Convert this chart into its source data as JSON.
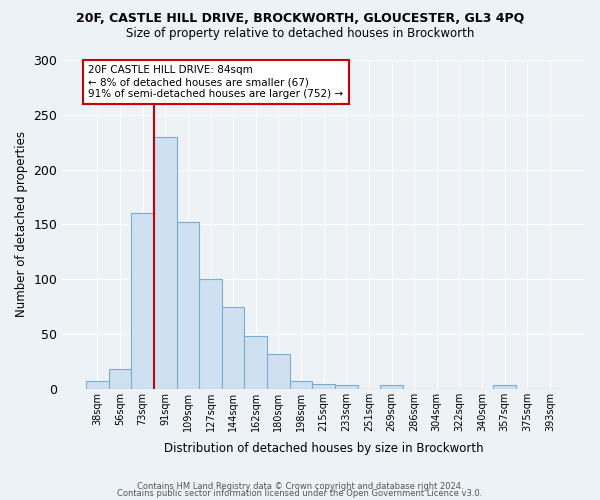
{
  "title1": "20F, CASTLE HILL DRIVE, BROCKWORTH, GLOUCESTER, GL3 4PQ",
  "title2": "Size of property relative to detached houses in Brockworth",
  "xlabel": "Distribution of detached houses by size in Brockworth",
  "ylabel": "Number of detached properties",
  "categories": [
    "38sqm",
    "56sqm",
    "73sqm",
    "91sqm",
    "109sqm",
    "127sqm",
    "144sqm",
    "162sqm",
    "180sqm",
    "198sqm",
    "215sqm",
    "233sqm",
    "251sqm",
    "269sqm",
    "286sqm",
    "304sqm",
    "322sqm",
    "340sqm",
    "357sqm",
    "375sqm",
    "393sqm"
  ],
  "values": [
    7,
    18,
    160,
    230,
    152,
    100,
    75,
    48,
    32,
    7,
    4,
    3,
    0,
    3,
    0,
    0,
    0,
    0,
    3,
    0,
    0
  ],
  "bar_color": "#cfe0f0",
  "bar_edge_color": "#7aadce",
  "vline_x": 2.5,
  "vline_color": "#cc0000",
  "annotation_text": "20F CASTLE HILL DRIVE: 84sqm\n← 8% of detached houses are smaller (67)\n91% of semi-detached houses are larger (752) →",
  "annotation_box_facecolor": "#ffffff",
  "annotation_box_edgecolor": "#cc0000",
  "footer1": "Contains HM Land Registry data © Crown copyright and database right 2024.",
  "footer2": "Contains public sector information licensed under the Open Government Licence v3.0.",
  "ylim": [
    0,
    300
  ],
  "yticks": [
    0,
    50,
    100,
    150,
    200,
    250,
    300
  ],
  "bg_color": "#edf2f7",
  "plot_bg_color": "#edf2f7",
  "grid_color": "#ffffff"
}
